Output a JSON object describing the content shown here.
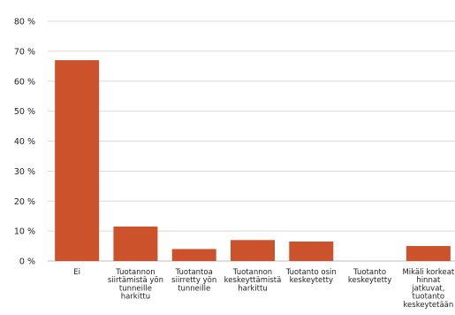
{
  "chart_data": {
    "type": "bar",
    "categories": [
      [
        "Ei"
      ],
      [
        "Tuotannon",
        "siirtämistä yön",
        "tunneille",
        "harkittu"
      ],
      [
        "Tuotantoa",
        "siirretty yön",
        "tunneille"
      ],
      [
        "Tuotannon",
        "keskeyttämistä",
        "harkittu"
      ],
      [
        "Tuotanto osin",
        "keskeytetty"
      ],
      [
        "Tuotanto",
        "keskeytetty"
      ],
      [
        "Mikäli korkeat",
        "hinnat",
        "jatkuvat,",
        "tuotanto",
        "keskeytetään"
      ]
    ],
    "values": [
      67,
      11.5,
      4,
      7,
      6.5,
      0,
      5
    ],
    "ylim": [
      0,
      80
    ],
    "yticks": [
      "0 %",
      "10 %",
      "20 %",
      "30 %",
      "40 %",
      "50 %",
      "60 %",
      "70 %",
      "80 %"
    ],
    "title": "",
    "xlabel": "",
    "ylabel": "",
    "grid": true,
    "colors": {
      "bar": "#cc522b",
      "grid": "#d9d9d9",
      "text": "#222222"
    }
  }
}
